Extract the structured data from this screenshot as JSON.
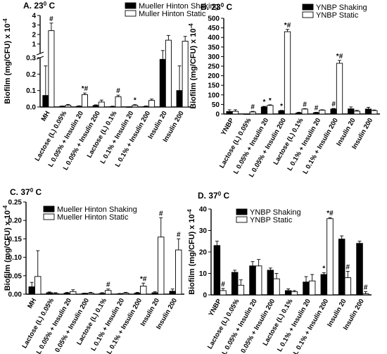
{
  "figure": {
    "y_axis_label": "Biofilm (mg/CFU) x 10",
    "y_axis_exponent": "-4",
    "star": "*",
    "hash": "#",
    "star_hash": "*#"
  },
  "chart_data": [
    {
      "id": "A",
      "type": "bar",
      "title": "A. 23",
      "title_sup": "0",
      "title_unit": " C",
      "ylabel": "Biofilm (mg/CFU) x 10",
      "y_broken": true,
      "ylim_lower": [
        0,
        0.3
      ],
      "yticks_lower": [
        "0.0",
        "0.1",
        "0.2",
        "0.3"
      ],
      "ylim_upper": [
        0,
        4
      ],
      "yticks_upper": [
        "0",
        "1",
        "2",
        "3",
        "4"
      ],
      "categories": [
        "MH",
        "Lactose (L) 0.05%",
        "L 0.05% + Insulin 20",
        "L 0.05% + Insulin 200",
        "Lactose (L) 0.1%",
        "L 0.1% + Insulin 20",
        "L 0.1% + Insulin 200",
        "Insulin 20",
        "Insulin 200"
      ],
      "series": [
        {
          "name": "Mueller Hinton Shaking",
          "fill": "#000000",
          "values": [
            0.07,
            0.004,
            0.004,
            0.009,
            0.002,
            0.0,
            0.003,
            0.29,
            0.1
          ],
          "errors": [
            0.18,
            0.002,
            0.003,
            0.004,
            0.003,
            0.001,
            0.003,
            0.02,
            0.15
          ]
        },
        {
          "name": "Muller Hinton Static",
          "fill": "#ffffff",
          "values": [
            2.4,
            0.01,
            0.075,
            0.03,
            0.062,
            0.01,
            0.04,
            1.4,
            1.3
          ],
          "errors": [
            0.8,
            0.005,
            0.01,
            0.012,
            0.01,
            0.004,
            0.008,
            0.5,
            0.5
          ]
        }
      ],
      "annotations": [
        {
          "series": 1,
          "index": 0,
          "text": "#"
        },
        {
          "series": 1,
          "index": 2,
          "text": "*#"
        },
        {
          "series": 1,
          "index": 4,
          "text": "#"
        },
        {
          "series": 1,
          "index": 5,
          "text": "*"
        }
      ]
    },
    {
      "id": "B",
      "type": "bar",
      "title": "B. 23",
      "title_sup": "0",
      "title_unit": " C",
      "ylabel": "Biofilm (mg/CFU) x 10",
      "ylim": [
        0,
        500
      ],
      "yticks": [
        "0",
        "50",
        "100",
        "150",
        "200",
        "250",
        "300",
        "350",
        "400",
        "450",
        "500"
      ],
      "categories": [
        "YNBP",
        "Lactose (L) 0.05%",
        "L 0.05% + Insulin 20",
        "L 0.05% + Insulin 200",
        "Lactose (L) 0.1%",
        "L 0.1% + Insulin 20",
        "L 0.1% + Insulin 200",
        "Insulin 20",
        "Insulin 200"
      ],
      "series": [
        {
          "name": "YNBP Shaking",
          "fill": "#000000",
          "values": [
            13,
            0,
            37,
            17,
            6,
            7,
            26,
            27,
            26
          ],
          "errors": [
            9,
            0,
            3,
            2,
            3,
            2,
            3,
            10,
            9
          ]
        },
        {
          "name": "YNBP Static",
          "fill": "#ffffff",
          "values": [
            14,
            11,
            45,
            430,
            26,
            20,
            265,
            15,
            18
          ],
          "errors": [
            8,
            3,
            3,
            12,
            2,
            2,
            15,
            4,
            3
          ]
        }
      ],
      "annotations": [
        {
          "series": 1,
          "index": 1,
          "text": "#"
        },
        {
          "series": 0,
          "index": 2,
          "text": "*"
        },
        {
          "series": 1,
          "index": 2,
          "text": "*"
        },
        {
          "series": 0,
          "index": 3,
          "text": "*"
        },
        {
          "series": 1,
          "index": 3,
          "text": "*#"
        },
        {
          "series": 1,
          "index": 4,
          "text": "#"
        },
        {
          "series": 0,
          "index": 5,
          "text": "#"
        },
        {
          "series": 0,
          "index": 6,
          "text": "#"
        },
        {
          "series": 1,
          "index": 6,
          "text": "*#"
        }
      ]
    },
    {
      "id": "C",
      "type": "bar",
      "title": "C. 37",
      "title_sup": "0",
      "title_unit": " C",
      "ylabel": "Biofilm (mg/CFU) x 10",
      "ylim": [
        0,
        0.25
      ],
      "yticks": [
        "0.00",
        "0.05",
        "0.10",
        "0.15",
        "0.20",
        "0.25"
      ],
      "categories": [
        "MH",
        "Lactose (L) 0.05%",
        "L 0.05% + Insulin 20",
        "L 0.05% + Insulin 200",
        "Lactose (L) 0.1%",
        "L 0.1% + Insulin 20",
        "L 0.1% + Insulin 200",
        "Insulin 20",
        "Insulin 200"
      ],
      "series": [
        {
          "name": "Mueller Hinton Shaking",
          "fill": "#000000",
          "values": [
            0.02,
            0.004,
            0.003,
            0.002,
            0.002,
            0.001,
            0.003,
            0.004,
            0.008
          ],
          "errors": [
            0.012,
            0.002,
            0.002,
            0.001,
            0.002,
            0.001,
            0.002,
            0.003,
            0.006
          ]
        },
        {
          "name": "Mueller Hinton Static",
          "fill": "#ffffff",
          "values": [
            0.048,
            0.002,
            0.007,
            0.003,
            0.01,
            0.003,
            0.022,
            0.155,
            0.12
          ],
          "errors": [
            0.07,
            0.002,
            0.005,
            0.002,
            0.004,
            0.002,
            0.008,
            0.052,
            0.03
          ]
        }
      ],
      "annotations": [
        {
          "series": 1,
          "index": 4,
          "text": "#"
        },
        {
          "series": 1,
          "index": 6,
          "text": "*#"
        },
        {
          "series": 1,
          "index": 7,
          "text": "#"
        },
        {
          "series": 1,
          "index": 8,
          "text": "#"
        }
      ]
    },
    {
      "id": "D",
      "type": "bar",
      "title": "D. 37",
      "title_sup": "0",
      "title_unit": " C",
      "ylabel": "Biofilm (mg/CFU) x 10",
      "ylim": [
        0,
        40
      ],
      "yticks": [
        "0",
        "10",
        "20",
        "30",
        "40"
      ],
      "categories": [
        "YNBP",
        "Lactose (L) 0.05%",
        "L 0.05% + Insulin 20",
        "L 0.05% + Insulin 200",
        "Lactose (L) 0.1%",
        "L 0.1% + Insulin 20",
        "L 0.1% + Insulin 200",
        "Insulin 20",
        "Insulin 200"
      ],
      "series": [
        {
          "name": "YNBP Shaking",
          "fill": "#000000",
          "values": [
            23,
            10.5,
            13.5,
            11.5,
            2,
            6,
            9.5,
            26,
            24
          ],
          "errors": [
            2,
            1,
            2,
            1,
            0.8,
            2.5,
            0.8,
            1.5,
            1
          ]
        },
        {
          "name": "YNBP Static",
          "fill": "#ffffff",
          "values": [
            2,
            4.5,
            13.5,
            7.5,
            1.5,
            6.5,
            35.5,
            8,
            0.5
          ],
          "errors": [
            1,
            2.5,
            3,
            2.5,
            0.5,
            3,
            0.5,
            3,
            1
          ]
        }
      ],
      "annotations": [
        {
          "series": 1,
          "index": 0,
          "text": "#"
        },
        {
          "series": 0,
          "index": 6,
          "text": "*"
        },
        {
          "series": 1,
          "index": 6,
          "text": "*#"
        },
        {
          "series": 1,
          "index": 7,
          "text": "#"
        },
        {
          "series": 1,
          "index": 8,
          "text": "#"
        }
      ]
    }
  ]
}
